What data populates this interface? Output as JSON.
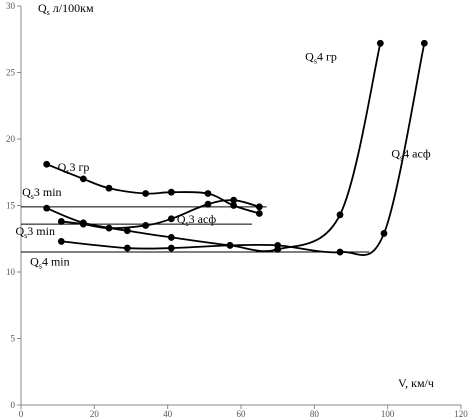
{
  "chart_data": {
    "type": "line",
    "title": "",
    "xlabel": "V, км/ч",
    "ylabel": "Q л/100км",
    "ylabel_subscript": "s",
    "xlim": [
      0,
      120
    ],
    "ylim": [
      0,
      30
    ],
    "xticks": [
      0,
      20,
      40,
      60,
      80,
      100,
      120
    ],
    "yticks": [
      0,
      5,
      10,
      15,
      20,
      25,
      30
    ],
    "xtick_labels": [
      "0",
      "20",
      "40",
      "60",
      "80",
      "100",
      "120"
    ],
    "ytick_labels": [
      "0",
      "5",
      "10",
      "15",
      "20",
      "25",
      "30"
    ],
    "grid": false,
    "legend": "none",
    "series_color": "#000000",
    "series": [
      {
        "label_main": "Q",
        "label_sub": "s",
        "label_rest": "3 гр",
        "label_at": [
          10,
          17.6
        ],
        "x": [
          7,
          17,
          24,
          34,
          41,
          51,
          58,
          65
        ],
        "y": [
          18.1,
          17,
          16.3,
          15.9,
          16,
          15.9,
          15,
          14.4
        ]
      },
      {
        "label_main": "Q",
        "label_sub": "s",
        "label_rest": "3 асф",
        "label_at": [
          42.5,
          13.7
        ],
        "x": [
          11,
          17,
          24,
          34,
          41,
          51,
          58,
          65
        ],
        "y": [
          13.8,
          13.6,
          13.3,
          13.5,
          14,
          15.1,
          15.4,
          14.9
        ]
      },
      {
        "label_main": "Q",
        "label_sub": "s",
        "label_rest": "4 гр",
        "label_at": [
          77.5,
          25.9
        ],
        "x": [
          7,
          17,
          29,
          41,
          57,
          70,
          87,
          98
        ],
        "y": [
          14.8,
          13.7,
          13.1,
          12.6,
          12,
          11.7,
          14.3,
          27.2
        ]
      },
      {
        "label_main": "Q",
        "label_sub": "s",
        "label_rest": "4 асф",
        "label_at": [
          101,
          18.6
        ],
        "x": [
          11,
          29,
          41,
          57,
          70,
          87,
          99,
          110
        ],
        "y": [
          12.3,
          11.8,
          11.8,
          12,
          12,
          11.5,
          12.9,
          27.2
        ]
      }
    ],
    "reference_lines": [
      {
        "label_main": "Q",
        "label_sub": "s",
        "label_rest": "3 min",
        "label_at": [
          0.3,
          15.7
        ],
        "y": 14.9,
        "x_range": [
          0,
          67
        ]
      },
      {
        "label_main": "Q",
        "label_sub": "s",
        "label_rest": "3 min",
        "label_at": [
          -1.5,
          12.8
        ],
        "y": 13.6,
        "x_range": [
          0,
          63
        ]
      },
      {
        "label_main": "Q",
        "label_sub": "s",
        "label_rest": "4 min",
        "label_at": [
          2.5,
          10.5
        ],
        "y": 11.5,
        "x_range": [
          0,
          95
        ]
      }
    ]
  }
}
